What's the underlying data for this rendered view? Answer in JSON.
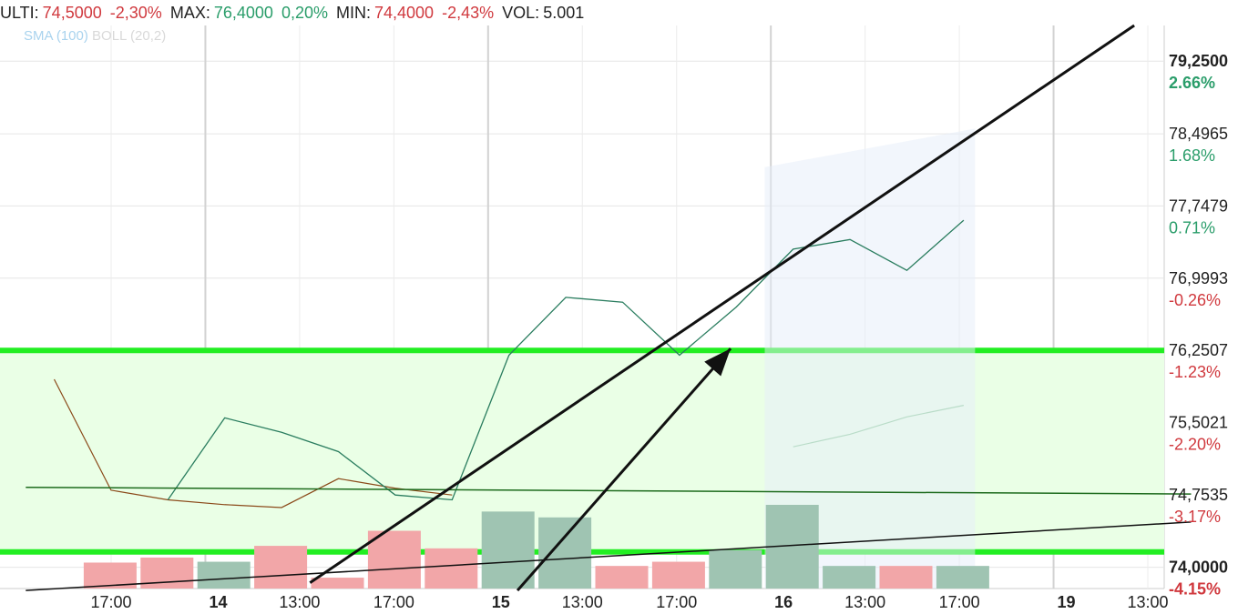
{
  "header": {
    "ulti_label": "ULTI:",
    "ulti_value": "74,5000",
    "ulti_change": "-2,30%",
    "max_label": "MAX:",
    "max_value": "76,4000",
    "max_change": "0,20%",
    "min_label": "MIN:",
    "min_value": "74,4000",
    "min_change": "-2,43%",
    "vol_label": "VOL:",
    "vol_value": "5.001"
  },
  "legend": {
    "sma": "SMA (100)",
    "boll": "BOLL (20,2)"
  },
  "colors": {
    "price_line": "#2a7d5f",
    "sma_line": "#8b4a1a",
    "band_line": "#22ee22",
    "band_fill": "#eaffe6",
    "volume_up": "#9fc4b2",
    "volume_down": "#f2a6a8",
    "positive_text": "#2a9d6a",
    "negative_text": "#d0393e",
    "trend_lines": "#111111"
  },
  "chart_data": {
    "type": "line",
    "x_tick_labels": [
      "17:00",
      "14",
      "13:00",
      "17:00",
      "15",
      "13:00",
      "17:00",
      "16",
      "13:00",
      "17:00",
      "19",
      "13:00"
    ],
    "y_axis": {
      "ylim": [
        73.78,
        79.62
      ],
      "ticks": [
        {
          "value": 79.25,
          "label": "79,2500",
          "pct": "2.66%",
          "bold": true
        },
        {
          "value": 78.4965,
          "label": "78,4965",
          "pct": "1.68%",
          "bold": false
        },
        {
          "value": 77.7479,
          "label": "77,7479",
          "pct": "0.71%",
          "bold": false
        },
        {
          "value": 76.9993,
          "label": "76,9993",
          "pct": "-0.26%",
          "bold": false
        },
        {
          "value": 76.2507,
          "label": "76,2507",
          "pct": "-1.23%",
          "bold": false
        },
        {
          "value": 75.5021,
          "label": "75,5021",
          "pct": "-2.20%",
          "bold": false
        },
        {
          "value": 74.7535,
          "label": "74,7535",
          "pct": "-3.17%",
          "bold": false
        },
        {
          "value": 74.0,
          "label": "74,0000",
          "pct": "-4.15%",
          "bold": true
        }
      ]
    },
    "price_series": [
      {
        "x": 2,
        "y": 74.7
      },
      {
        "x": 3,
        "y": 75.55
      },
      {
        "x": 4,
        "y": 75.4
      },
      {
        "x": 5,
        "y": 75.2
      },
      {
        "x": 6,
        "y": 74.75
      },
      {
        "x": 7,
        "y": 74.7
      },
      {
        "x": 8,
        "y": 76.2
      },
      {
        "x": 9,
        "y": 76.8
      },
      {
        "x": 10,
        "y": 76.75
      },
      {
        "x": 11,
        "y": 76.2
      },
      {
        "x": 12,
        "y": 76.7
      },
      {
        "x": 13,
        "y": 77.3
      },
      {
        "x": 14,
        "y": 77.4
      },
      {
        "x": 15,
        "y": 77.08
      },
      {
        "x": 16,
        "y": 77.6
      }
    ],
    "sma_series": [
      {
        "x": 0,
        "y": 75.95
      },
      {
        "x": 1,
        "y": 74.8
      },
      {
        "x": 2,
        "y": 74.7
      },
      {
        "x": 3,
        "y": 74.65
      },
      {
        "x": 4,
        "y": 74.62
      },
      {
        "x": 5,
        "y": 74.92
      },
      {
        "x": 6,
        "y": 74.82
      },
      {
        "x": 7,
        "y": 74.75
      }
    ],
    "projection_series": [
      {
        "x": 13,
        "y": 75.25
      },
      {
        "x": 14,
        "y": 75.38
      },
      {
        "x": 15,
        "y": 75.56
      },
      {
        "x": 16,
        "y": 75.68
      }
    ],
    "volume_bars": [
      {
        "x": 1,
        "height": 0.31,
        "direction": "down"
      },
      {
        "x": 2,
        "height": 0.37,
        "direction": "down"
      },
      {
        "x": 3,
        "height": 0.32,
        "direction": "up"
      },
      {
        "x": 4,
        "height": 0.51,
        "direction": "down"
      },
      {
        "x": 5,
        "height": 0.13,
        "direction": "down"
      },
      {
        "x": 6,
        "height": 0.69,
        "direction": "down"
      },
      {
        "x": 7,
        "height": 0.48,
        "direction": "down"
      },
      {
        "x": 8,
        "height": 0.92,
        "direction": "up"
      },
      {
        "x": 9,
        "height": 0.85,
        "direction": "up"
      },
      {
        "x": 10,
        "height": 0.27,
        "direction": "down"
      },
      {
        "x": 11,
        "height": 0.32,
        "direction": "down"
      },
      {
        "x": 12,
        "height": 0.46,
        "direction": "up"
      },
      {
        "x": 13,
        "height": 1.0,
        "direction": "up"
      },
      {
        "x": 14,
        "height": 0.27,
        "direction": "up"
      },
      {
        "x": 15,
        "height": 0.27,
        "direction": "down"
      },
      {
        "x": 16,
        "height": 0.27,
        "direction": "up"
      }
    ],
    "band": {
      "upper": 76.25,
      "lower": 74.16
    },
    "trend_lines": [
      {
        "from": {
          "x": -0.5,
          "y": 74.83
        },
        "to": {
          "x": 20,
          "y": 74.76
        }
      },
      {
        "from": {
          "x": -0.5,
          "y": 73.76
        },
        "to": {
          "x": 20,
          "y": 74.47
        }
      },
      {
        "from": {
          "x": 4.5,
          "y": 73.84
        },
        "to": {
          "x": 19,
          "y": 79.62
        }
      },
      {
        "from": {
          "x": 8.15,
          "y": 73.76
        },
        "to": {
          "x": 11.9,
          "y": 76.27
        },
        "arrow": true
      }
    ],
    "projection_zone": {
      "x_from": 12.5,
      "x_to": 16.2
    }
  }
}
